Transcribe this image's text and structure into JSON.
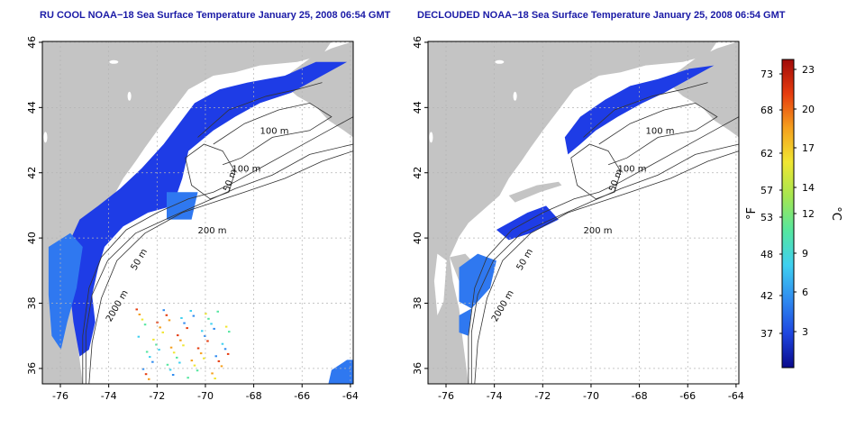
{
  "panels": [
    {
      "title": "RU COOL NOAA−18 Sea Surface Temperature January 25, 2008 06:54 GMT",
      "x_ticks": [
        "-76",
        "-74",
        "-72",
        "-70",
        "-68",
        "-66",
        "-64"
      ],
      "y_ticks": [
        "36",
        "38",
        "40",
        "42",
        "44",
        "46"
      ],
      "contour_labels": [
        "100 m",
        "100 m",
        "50 m",
        "200 m",
        "50 m",
        "2000 m"
      ]
    },
    {
      "title": "DECLOUDED NOAA−18 Sea Surface Temperature January 25, 2008 06:54 GMT",
      "x_ticks": [
        "-76",
        "-74",
        "-72",
        "-70",
        "-68",
        "-66",
        "-64"
      ],
      "y_ticks": [
        "36",
        "38",
        "40",
        "42",
        "44",
        "46"
      ],
      "contour_labels": [
        "100 m",
        "100 m",
        "50 m",
        "200 m",
        "50 m",
        "2000 m"
      ]
    }
  ],
  "colorbar": {
    "unit_left": "°F",
    "unit_right": "°C",
    "f_ticks": [
      "73",
      "68",
      "62",
      "57",
      "53",
      "48",
      "42",
      "37"
    ],
    "c_ticks": [
      "23",
      "20",
      "17",
      "14",
      "12",
      "9",
      "6",
      "3"
    ],
    "colors": [
      "#0a0a8c",
      "#1e46e0",
      "#2f8cf0",
      "#3fd0f0",
      "#55e6a0",
      "#a5e650",
      "#f0e632",
      "#f5a01e",
      "#e63c0f",
      "#a00a0a"
    ]
  },
  "colors": {
    "land": "#c4c4c4",
    "title": "#1a1aa6",
    "sst_cold": "#1e3ce6",
    "sst_mid": "#2f78f0",
    "contour": "#333333",
    "grid": "#b4b4b4"
  }
}
